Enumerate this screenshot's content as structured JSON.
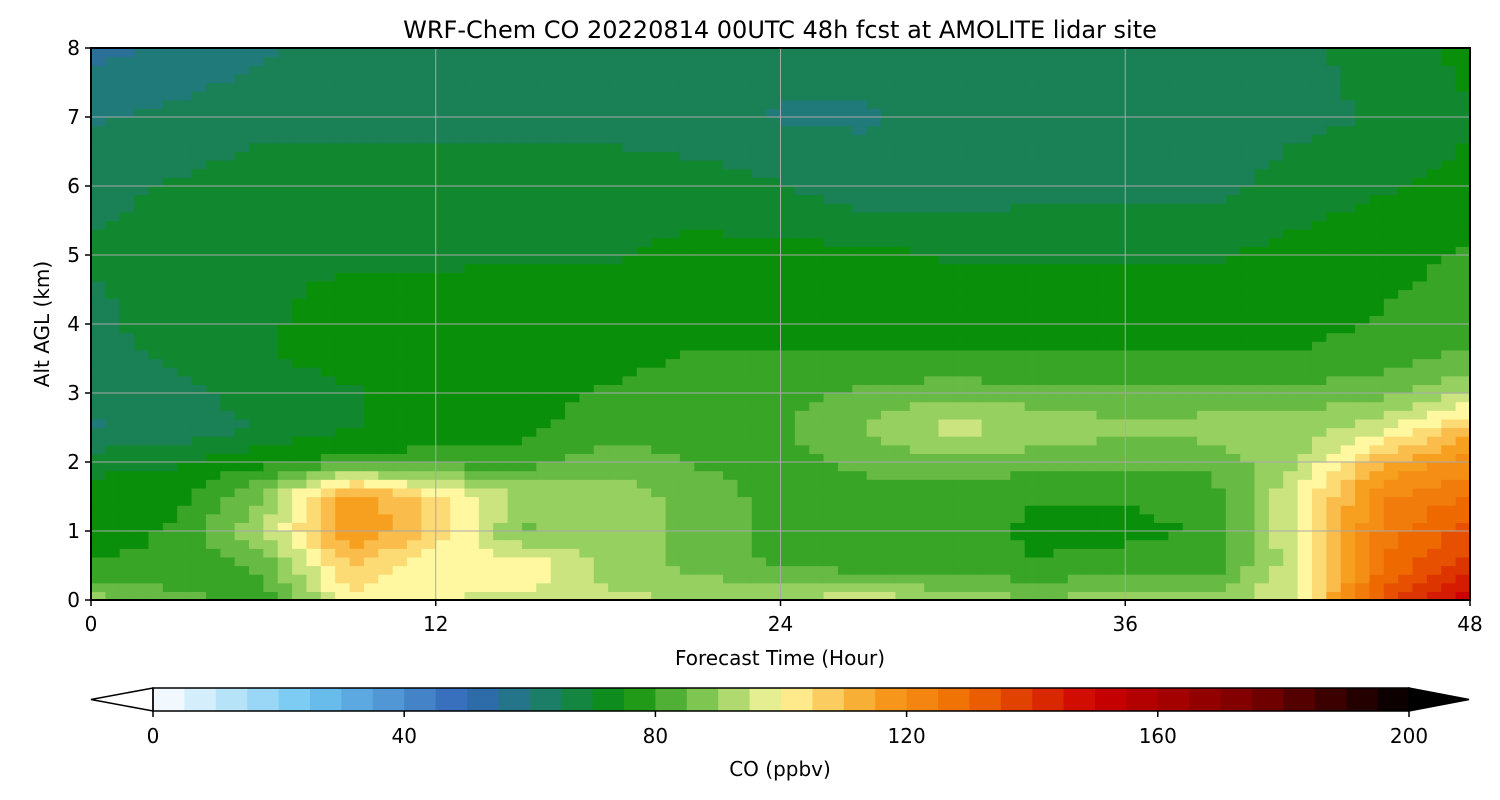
{
  "chart_data": {
    "type": "heatmap",
    "title": "WRF-Chem CO  20220814 00UTC 48h fcst at AMOLITE lidar site",
    "xlabel": "Forecast Time (Hour)",
    "ylabel": "Alt AGL (km)",
    "xlim": [
      0,
      48
    ],
    "ylim": [
      0,
      8
    ],
    "x_ticks": [
      "0",
      "12",
      "24",
      "36",
      "48"
    ],
    "y_ticks": [
      "0",
      "1",
      "2",
      "3",
      "4",
      "5",
      "6",
      "7",
      "8"
    ],
    "grid": true,
    "colorbar": {
      "label": "CO  (ppbv)",
      "range": [
        0,
        200
      ],
      "extend": "both",
      "ticks": [
        "0",
        "40",
        "80",
        "120",
        "160",
        "200"
      ]
    },
    "x_hours": [
      0,
      3,
      6,
      9,
      12,
      15,
      18,
      21,
      24,
      27,
      30,
      33,
      36,
      39,
      42,
      45,
      48
    ],
    "y_km": [
      0,
      0.5,
      1,
      1.5,
      2,
      2.5,
      3,
      3.5,
      4,
      5,
      6,
      7,
      8
    ],
    "z_ppbv": [
      [
        90,
        84,
        80,
        100,
        98,
        96,
        94,
        92,
        92,
        96,
        90,
        88,
        90,
        90,
        98,
        135,
        150
      ],
      [
        78,
        78,
        84,
        108,
        98,
        102,
        90,
        86,
        82,
        80,
        80,
        78,
        80,
        80,
        96,
        128,
        140
      ],
      [
        76,
        78,
        92,
        118,
        106,
        86,
        90,
        86,
        80,
        80,
        80,
        76,
        76,
        78,
        98,
        125,
        135
      ],
      [
        76,
        76,
        88,
        118,
        104,
        92,
        90,
        86,
        80,
        80,
        80,
        78,
        78,
        80,
        98,
        122,
        128
      ],
      [
        70,
        72,
        76,
        80,
        80,
        80,
        86,
        82,
        80,
        84,
        86,
        84,
        84,
        84,
        92,
        112,
        120
      ],
      [
        62,
        64,
        68,
        72,
        74,
        76,
        80,
        80,
        82,
        88,
        94,
        92,
        88,
        90,
        90,
        96,
        110
      ],
      [
        64,
        66,
        70,
        72,
        74,
        76,
        78,
        80,
        80,
        84,
        86,
        84,
        84,
        84,
        84,
        86,
        92
      ],
      [
        66,
        68,
        72,
        74,
        76,
        76,
        76,
        78,
        78,
        78,
        78,
        78,
        78,
        78,
        78,
        80,
        84
      ],
      [
        66,
        70,
        72,
        74,
        74,
        76,
        76,
        76,
        76,
        76,
        76,
        76,
        76,
        76,
        76,
        78,
        80
      ],
      [
        68,
        70,
        72,
        72,
        72,
        72,
        72,
        74,
        74,
        74,
        72,
        72,
        72,
        72,
        74,
        76,
        78
      ],
      [
        66,
        68,
        70,
        70,
        70,
        70,
        70,
        70,
        68,
        64,
        64,
        66,
        66,
        66,
        70,
        72,
        74
      ],
      [
        62,
        64,
        66,
        66,
        66,
        66,
        66,
        64,
        62,
        62,
        64,
        64,
        64,
        64,
        66,
        68,
        72
      ],
      [
        56,
        58,
        62,
        64,
        64,
        64,
        64,
        64,
        64,
        64,
        64,
        64,
        64,
        64,
        66,
        70,
        74
      ]
    ]
  }
}
